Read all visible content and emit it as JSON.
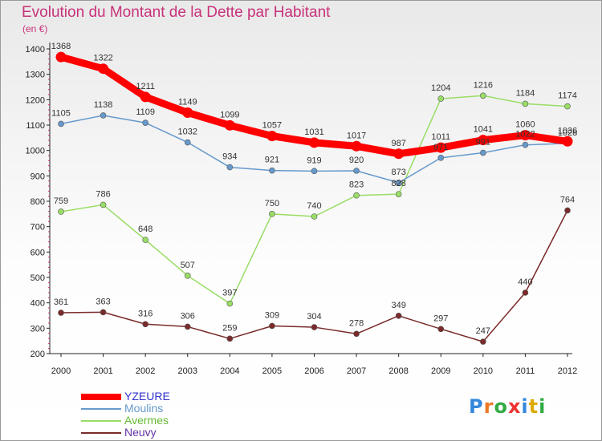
{
  "title": "Evolution du Montant de la Dette par Habitant",
  "unit": "(en €)",
  "logo_text": "Proxiti",
  "chart_data": {
    "type": "line",
    "x": [
      "2000",
      "2001",
      "2002",
      "2003",
      "2004",
      "2005",
      "2006",
      "2007",
      "2008",
      "2009",
      "2010",
      "2011",
      "2012"
    ],
    "ylim": [
      200,
      1400
    ],
    "yticks": [
      200,
      300,
      400,
      500,
      600,
      700,
      800,
      900,
      1000,
      1100,
      1200,
      1300,
      1400
    ],
    "grid": false,
    "legend_position": "bottom-left",
    "series": [
      {
        "name": "YZEURE",
        "color": "#ff0000",
        "values": [
          1368,
          1322,
          1211,
          1149,
          1099,
          1057,
          1031,
          1017,
          987,
          1011,
          1041,
          1060,
          1036
        ]
      },
      {
        "name": "Moulins",
        "color": "#6699cc",
        "values": [
          1105,
          1138,
          1109,
          1032,
          934,
          921,
          919,
          920,
          873,
          971,
          991,
          1022,
          1028
        ]
      },
      {
        "name": "Avermes",
        "color": "#99dd66",
        "values": [
          759,
          786,
          648,
          507,
          397,
          750,
          740,
          823,
          828,
          1204,
          1216,
          1184,
          1174
        ]
      },
      {
        "name": "Neuvy",
        "color": "#7a2a2a",
        "values": [
          361,
          363,
          316,
          306,
          259,
          309,
          304,
          278,
          349,
          297,
          247,
          440,
          764
        ]
      }
    ]
  }
}
